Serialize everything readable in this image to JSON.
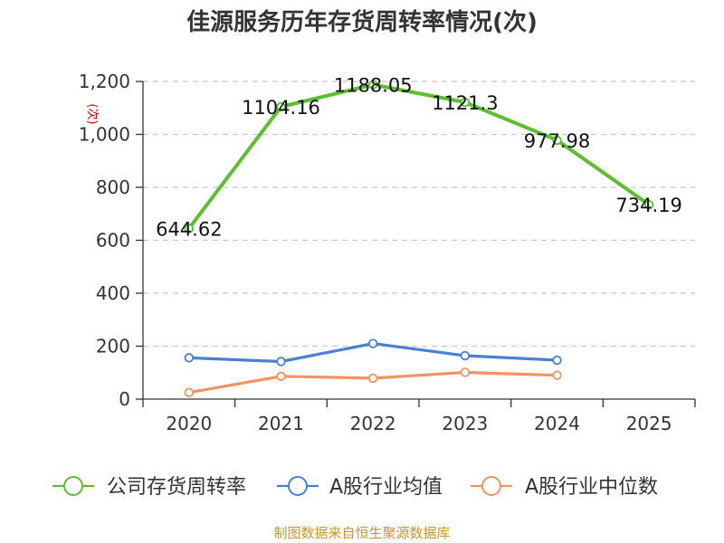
{
  "chart_data": {
    "type": "line",
    "title": "佳源服务历年存货周转率情况(次)",
    "ylabel": "(次)",
    "categories": [
      "2020",
      "2021",
      "2022",
      "2023",
      "2024",
      "2025"
    ],
    "ylim": [
      0,
      1200
    ],
    "yticks": [
      0,
      200,
      400,
      600,
      800,
      1000,
      1200
    ],
    "ytick_labels": [
      "0",
      "200",
      "400",
      "600",
      "800",
      "1,000",
      "1,200"
    ],
    "grid": true,
    "legend_position": "bottom",
    "series": [
      {
        "name": "公司存货周转率",
        "color": "#5cc02e",
        "values": [
          644.62,
          1104.16,
          1188.05,
          1121.3,
          977.98,
          734.19
        ],
        "labels": [
          "644.62",
          "1104.16",
          "1188.05",
          "1121.3",
          "977.98",
          "734.19"
        ]
      },
      {
        "name": "A股行业均值",
        "color": "#4a7fd6",
        "values": [
          156,
          142,
          210,
          164,
          147,
          null
        ]
      },
      {
        "name": "A股行业中位数",
        "color": "#f4935f",
        "values": [
          25,
          86,
          79,
          101,
          90,
          null
        ]
      }
    ]
  },
  "footer": "制图数据来自恒生聚源数据库"
}
